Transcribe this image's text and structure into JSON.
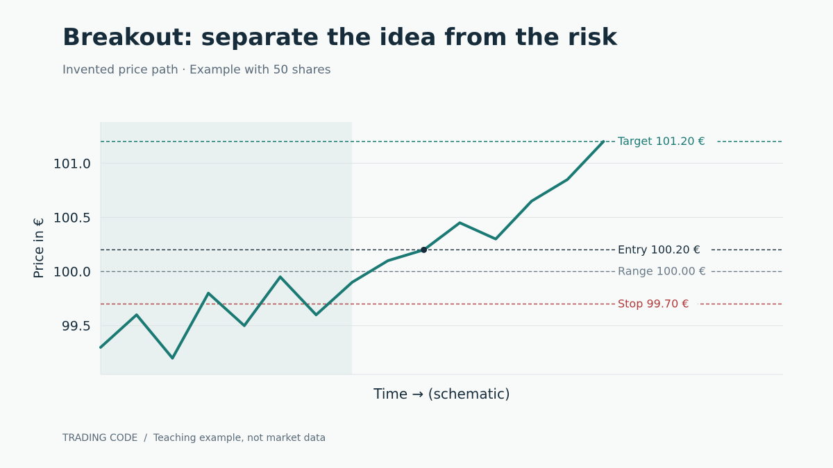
{
  "header": {
    "title": "Breakout: separate the idea from the risk",
    "subtitle": "Invented price path · Example with 50 shares"
  },
  "footer": {
    "brand": "TRADING CODE",
    "separator": "/",
    "note": "Teaching example, not market data"
  },
  "chart_data": {
    "type": "line",
    "title": "Breakout: separate the idea from the risk",
    "xlabel": "Time → (schematic)",
    "ylabel": "Price in €",
    "ylim": [
      99.05,
      101.38
    ],
    "yticks": [
      99.5,
      100.0,
      100.5,
      101.0
    ],
    "ytick_labels": [
      "99.5",
      "100.0",
      "100.5",
      "101.0"
    ],
    "grid": true,
    "x": [
      0,
      1,
      2,
      3,
      4,
      5,
      6,
      7,
      8,
      9,
      10,
      11,
      12,
      13,
      14
    ],
    "xlim": [
      0,
      19
    ],
    "series": [
      {
        "values": [
          99.3,
          99.6,
          99.2,
          99.8,
          99.5,
          99.95,
          99.6,
          99.9,
          100.1,
          100.2,
          100.45,
          100.3,
          100.65,
          100.85,
          101.2
        ],
        "color": "#1b7a74"
      }
    ],
    "consolidation_range": {
      "x_from": 0,
      "x_to": 7,
      "color": "#1b7a74"
    },
    "entry_point": {
      "x": 9,
      "y": 100.2
    },
    "levels": [
      {
        "label": "Target 101.20 €",
        "value": 101.2,
        "color": "#1b7a74"
      },
      {
        "label": "Entry 100.20 €",
        "value": 100.2,
        "color": "#172c3a"
      },
      {
        "label": "Range 100.00 €",
        "value": 100.0,
        "color": "#6a7a87"
      },
      {
        "label": "Stop 99.70 €",
        "value": 99.7,
        "color": "#b23a3a"
      }
    ]
  }
}
